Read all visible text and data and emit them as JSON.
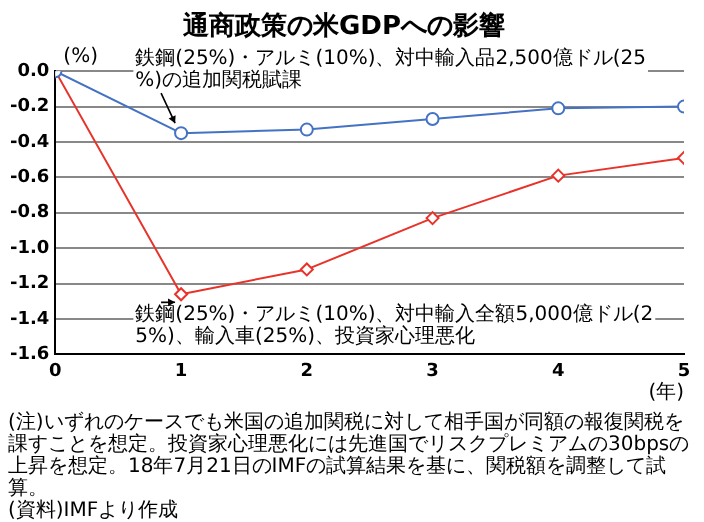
{
  "chart_data": {
    "type": "line",
    "title": "通商政策の米GDPへの影響",
    "ylabel": "(%)",
    "xlabel": "(年)",
    "x": [
      0,
      1,
      2,
      3,
      4,
      5
    ],
    "series": [
      {
        "color": "#4472c4",
        "marker": "circle",
        "values": [
          0,
          -0.35,
          -0.33,
          -0.27,
          -0.21,
          -0.2
        ]
      },
      {
        "color": "#e8332a",
        "marker": "diamond",
        "values": [
          0,
          -1.26,
          -1.12,
          -0.83,
          -0.59,
          -0.49
        ]
      }
    ],
    "xlim": [
      0,
      5
    ],
    "xticks": [
      0,
      1,
      2,
      3,
      4,
      5
    ],
    "ylim": [
      -1.6,
      0
    ],
    "yticks": [
      {
        "value": -1.6,
        "label": "-1.6"
      },
      {
        "value": -1.4,
        "label": "-1.4"
      },
      {
        "value": -1.2,
        "label": "-1.2"
      },
      {
        "value": -1,
        "label": "-1.0"
      },
      {
        "value": -0.8,
        "label": "-0.8"
      },
      {
        "value": -0.6,
        "label": "-0.6"
      },
      {
        "value": -0.4,
        "label": "-0.4"
      },
      {
        "value": -0.2,
        "label": "-0.2"
      },
      {
        "value": 0,
        "label": "0.0"
      }
    ],
    "grid": "y",
    "legend": false,
    "annotations": [
      {
        "text": "鉄鋼(25%)・アルミ(10%)、対中輸入品2,500億ドル(25%)の追加関税賦課",
        "x": 1,
        "y": -0.35
      },
      {
        "text": "鉄鋼(25%)・アルミ(10%)、対中輸入全額5,000億ドル(25%)、輸入車(25%)、投資家心理悪化",
        "x": 1,
        "y": -1.26
      },
      "(注)いずれのケースでも米国の追加関税に対して相手国が同額の報復関税を課すことを想定。投資家心理悪化には先進国でリスクプレミアムの30bpsの上昇を想定。18年7月21日のIMFの試算結果を基に、関税額を調整して試算。",
      "(資料)IMFより作成"
    ]
  }
}
